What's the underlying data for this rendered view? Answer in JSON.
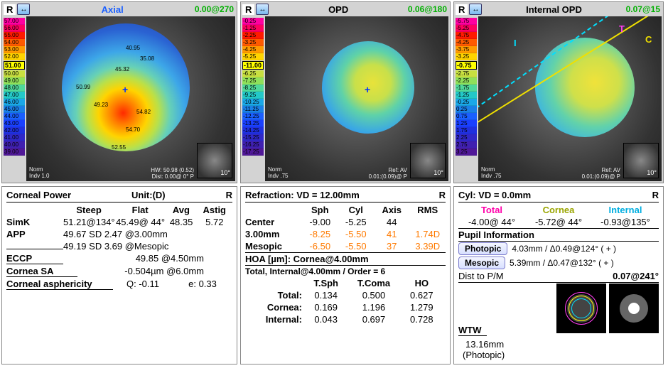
{
  "panels": {
    "axial": {
      "r": "R",
      "title": "Axial",
      "title_color": "#1a5fff",
      "reading": "0.00@270",
      "mark": "51.00",
      "scale": [
        "57.00",
        "56.00",
        "55.00",
        "54.00",
        "53.00",
        "52.00",
        "50.00",
        "49.00",
        "48.00",
        "47.00",
        "46.00",
        "45.00",
        "44.00",
        "43.00",
        "42.00",
        "41.00",
        "40.00",
        "39.00"
      ],
      "scale_colors": [
        "#ff00a0",
        "#ff0060",
        "#ff1a00",
        "#ff5a00",
        "#ff9a00",
        "#ffd400",
        "#c8e040",
        "#8fe05a",
        "#4fd89a",
        "#23c8c8",
        "#1aa8e8",
        "#1a80e8",
        "#1a5fff",
        "#1a40ff",
        "#2030e0",
        "#3028c8",
        "#4020b0",
        "#501898"
      ],
      "points": {
        "a": "40.95",
        "b": "35.08",
        "c": "50.99",
        "d": "45.32",
        "e": "49.23",
        "f": "54.82",
        "g": "54.70",
        "h": "52.55"
      },
      "footer_left": "Norm\nIndv 1.0",
      "footer_right": "HW: 50.98 (0.52)\nDist: 0.00@ 0° P"
    },
    "opd": {
      "r": "R",
      "title": "OPD",
      "title_color": "#000000",
      "reading": "0.06@180",
      "mark": "-11.00",
      "scale": [
        "-0.25",
        "-1.25",
        "-2.25",
        "-3.25",
        "-4.25",
        "-5.25",
        "-6.25",
        "-7.25",
        "-8.25",
        "-9.25",
        "-10.25",
        "-11.25",
        "-12.25",
        "-13.25",
        "-14.25",
        "-15.25",
        "-16.25",
        "-17.25"
      ],
      "scale_colors": [
        "#ff00a0",
        "#ff0060",
        "#ff1a00",
        "#ff5a00",
        "#ff9a00",
        "#ffd400",
        "#c8e040",
        "#8fe05a",
        "#4fd89a",
        "#23c8c8",
        "#1aa8e8",
        "#1a80e8",
        "#1a5fff",
        "#1a40ff",
        "#2030e0",
        "#3028c8",
        "#4020b0",
        "#501898"
      ],
      "footer_left": "Norm\nIndv .75",
      "footer_right": "Ref: AV\n0.01:(0.09)@ P"
    },
    "iopd": {
      "r": "R",
      "title": "Internal OPD",
      "title_color": "#000000",
      "reading": "0.07@15",
      "mark": "-0.75",
      "scale": [
        "-5.75",
        "-5.25",
        "-4.75",
        "-4.25",
        "-3.75",
        "-3.25",
        "-2.75",
        "-2.25",
        "-1.75",
        "-1.25",
        "-0.25",
        "0.25",
        "0.75",
        "1.25",
        "1.75",
        "2.25",
        "2.75",
        "3.25"
      ],
      "scale_colors": [
        "#ff00a0",
        "#ff0060",
        "#ff1a00",
        "#ff5a00",
        "#ff9a00",
        "#ffd400",
        "#c8e040",
        "#8fe05a",
        "#4fd89a",
        "#23c8c8",
        "#1aa8e8",
        "#1a80e8",
        "#1a5fff",
        "#1a40ff",
        "#2030e0",
        "#3028c8",
        "#4020b0",
        "#501898"
      ],
      "letters": {
        "I": "I",
        "T": "T",
        "C": "C"
      },
      "footer_left": "Norm\nIndv .75",
      "footer_right": "Ref: AV\n0.01:(0.09)@ P"
    }
  },
  "corneal": {
    "header_left": "Corneal Power",
    "header_mid": "Unit:(D)",
    "header_right": "R",
    "cols": [
      "Steep",
      "Flat",
      "Avg",
      "Astig"
    ],
    "simk_label": "SimK",
    "simk": {
      "steep": "51.21@134°",
      "flat": "45.49@ 44°",
      "avg": "48.35",
      "astig": "5.72"
    },
    "app_label": "APP",
    "app1": "49.67 SD 2.47 @3.00mm",
    "app2": "49.19 SD 3.69 @Mesopic",
    "eccp_label": "ECCP",
    "eccp": "49.85 @4.50mm",
    "sa_label": "Cornea SA",
    "sa": "-0.504µm @6.0mm",
    "asph_label": "Corneal asphericity",
    "asph_q": "Q: -0.11",
    "asph_e": "e: 0.33"
  },
  "refraction": {
    "header_left": "Refraction: VD = 12.00mm",
    "header_right": "R",
    "cols": [
      "Sph",
      "Cyl",
      "Axis",
      "RMS"
    ],
    "center_label": "Center",
    "center": {
      "sph": "-9.00",
      "cyl": "-5.25",
      "axis": "44",
      "rms": ""
    },
    "r3_label": "3.00mm",
    "r3": {
      "sph": "-8.25",
      "cyl": "-5.50",
      "axis": "41",
      "rms": "1.74D"
    },
    "mes_label": "Mesopic",
    "mes": {
      "sph": "-6.50",
      "cyl": "-5.50",
      "axis": "37",
      "rms": "3.39D"
    },
    "hoa_header": "HOA [µm]: Cornea@4.00mm",
    "hoa_sub": "Total, Internal@4.00mm / Order = 6",
    "hoa_cols": [
      "T.Sph",
      "T.Coma",
      "HO"
    ],
    "total_label": "Total:",
    "total": {
      "tsph": "0.134",
      "tcoma": "0.500",
      "ho": "0.627"
    },
    "cornea_label": "Cornea:",
    "cornea": {
      "tsph": "0.169",
      "tcoma": "1.196",
      "ho": "1.279"
    },
    "internal_label": "Internal:",
    "internal": {
      "tsph": "0.043",
      "tcoma": "0.697",
      "ho": "0.728"
    }
  },
  "cyl": {
    "header_left": "Cyl: VD = 0.0mm",
    "header_right": "R",
    "labels": {
      "total": "Total",
      "cornea": "Cornea",
      "internal": "Internal"
    },
    "total": "-4.00@ 44°",
    "cornea": "-5.72@ 44°",
    "internal": "-0.93@135°",
    "pupil_header": "Pupil Information",
    "photopic_btn": "Photopic",
    "photopic_txt": "4.03mm / Δ0.49@124° ( + )",
    "mesopic_btn": "Mesopic",
    "mesopic_txt": "5.39mm / Δ0.47@132° ( + )",
    "dist_label": "Dist to P/M",
    "dist_val": "0.07@241°",
    "wtw_header": "WTW",
    "wtw_val": "13.16mm",
    "wtw_mode": "(Photopic)"
  }
}
